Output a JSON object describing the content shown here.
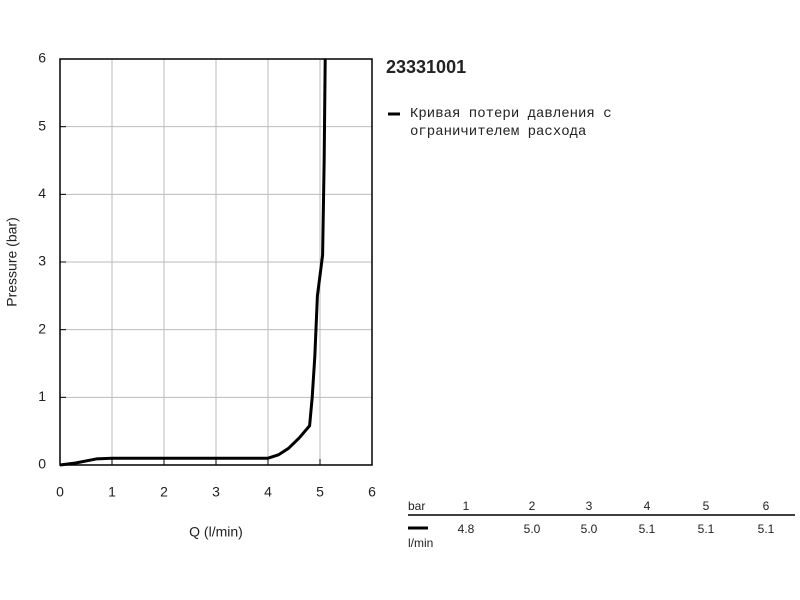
{
  "chart_data": {
    "type": "line",
    "title": "23331001",
    "x_label": "Q (l/min)",
    "y_label": "Pressure (bar)",
    "x": [
      0,
      0.3,
      0.7,
      1,
      2,
      3,
      4,
      4.2,
      4.4,
      4.6,
      4.8,
      4.85,
      4.9,
      4.95,
      5.05,
      5.08,
      5.1
    ],
    "series": [
      {
        "name": "Кривая потери давления с ограничителем расхода",
        "color": "#000000",
        "values": [
          0,
          0.03,
          0.09,
          0.1,
          0.1,
          0.1,
          0.1,
          0.15,
          0.25,
          0.4,
          0.58,
          1.0,
          1.6,
          2.5,
          3.1,
          4.5,
          6
        ]
      }
    ],
    "xlim": [
      0,
      6
    ],
    "ylim": [
      0,
      6
    ],
    "xticks": [
      0,
      1,
      2,
      3,
      4,
      5,
      6
    ],
    "yticks": [
      0,
      1,
      2,
      3,
      4,
      5,
      6
    ],
    "grid": true
  },
  "table": {
    "header": [
      "bar",
      "1",
      "2",
      "3",
      "4",
      "5",
      "6"
    ],
    "unit": "l/min",
    "values": [
      "4.8",
      "5.0",
      "5.0",
      "5.1",
      "5.1",
      "5.1"
    ]
  }
}
